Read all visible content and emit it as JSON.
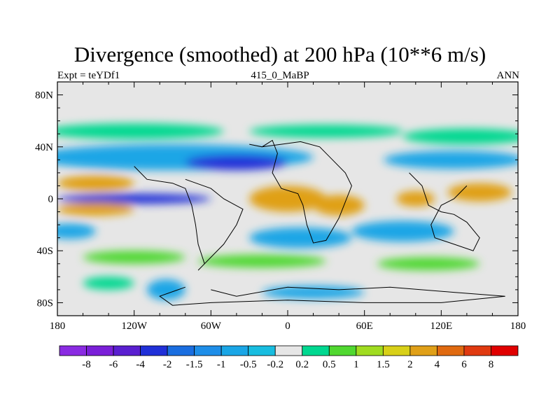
{
  "chart_data": {
    "type": "heatmap",
    "title": "Divergence (smoothed) at 200 hPa (10**6 m/s)",
    "subtitle_left": "Expt = teYDf1",
    "subtitle_center": "415_0_MaBP",
    "subtitle_right": "ANN",
    "x_ticks": [
      "180",
      "120W",
      "60W",
      "0",
      "60E",
      "120E",
      "180"
    ],
    "x_tick_values": [
      -180,
      -120,
      -60,
      0,
      60,
      120,
      180
    ],
    "y_ticks": [
      "80N",
      "40N",
      "0",
      "40S",
      "80S"
    ],
    "y_tick_values": [
      80,
      40,
      0,
      -40,
      -80
    ],
    "xlim": [
      -180,
      180
    ],
    "ylim": [
      -90,
      90
    ],
    "colorbar_labels": [
      "-8",
      "-6",
      "-4",
      "-2",
      "-1.5",
      "-1",
      "-0.5",
      "-0.2",
      "0.2",
      "0.5",
      "1",
      "1.5",
      "2",
      "4",
      "6",
      "8"
    ],
    "colorbar_colors": [
      "#8a2be2",
      "#7a1fd8",
      "#5a1fd0",
      "#2030d8",
      "#1a6ee0",
      "#1e8ee8",
      "#1aa6e6",
      "#18bde0",
      "#e6e6e6",
      "#00d890",
      "#50d830",
      "#a0dc20",
      "#d8d018",
      "#e0a018",
      "#e06a10",
      "#e03a10",
      "#e00000"
    ],
    "background_color": "#e6e6e6",
    "field_blobs": [
      {
        "lon": -120,
        "lat": 52,
        "rx": 70,
        "ry": 6,
        "level": 9
      },
      {
        "lon": 30,
        "lat": 52,
        "rx": 60,
        "ry": 5,
        "level": 9
      },
      {
        "lon": 140,
        "lat": 48,
        "rx": 50,
        "ry": 6,
        "level": 9
      },
      {
        "lon": -90,
        "lat": 32,
        "rx": 110,
        "ry": 10,
        "level": 6
      },
      {
        "lon": -40,
        "lat": 28,
        "rx": 40,
        "ry": 6,
        "level": 3
      },
      {
        "lon": 130,
        "lat": 30,
        "rx": 55,
        "ry": 7,
        "level": 6
      },
      {
        "lon": -150,
        "lat": 12,
        "rx": 30,
        "ry": 6,
        "level": 13
      },
      {
        "lon": -120,
        "lat": 0,
        "rx": 60,
        "ry": 4,
        "level": 3
      },
      {
        "lon": -150,
        "lat": -8,
        "rx": 30,
        "ry": 5,
        "level": 13
      },
      {
        "lon": -170,
        "lat": -25,
        "rx": 20,
        "ry": 6,
        "level": 6
      },
      {
        "lon": 0,
        "lat": 0,
        "rx": 30,
        "ry": 10,
        "level": 13
      },
      {
        "lon": 40,
        "lat": -5,
        "rx": 20,
        "ry": 8,
        "level": 13
      },
      {
        "lon": 100,
        "lat": 0,
        "rx": 15,
        "ry": 6,
        "level": 13
      },
      {
        "lon": 150,
        "lat": 5,
        "rx": 25,
        "ry": 7,
        "level": 13
      },
      {
        "lon": 10,
        "lat": -30,
        "rx": 40,
        "ry": 8,
        "level": 6
      },
      {
        "lon": 90,
        "lat": -25,
        "rx": 40,
        "ry": 8,
        "level": 6
      },
      {
        "lon": -120,
        "lat": -45,
        "rx": 40,
        "ry": 5,
        "level": 10
      },
      {
        "lon": -20,
        "lat": -48,
        "rx": 50,
        "ry": 5,
        "level": 10
      },
      {
        "lon": 110,
        "lat": -50,
        "rx": 40,
        "ry": 5,
        "level": 10
      },
      {
        "lon": -95,
        "lat": -70,
        "rx": 15,
        "ry": 8,
        "level": 6
      },
      {
        "lon": 20,
        "lat": -72,
        "rx": 40,
        "ry": 5,
        "level": 6
      },
      {
        "lon": -140,
        "lat": -65,
        "rx": 20,
        "ry": 5,
        "level": 9
      }
    ],
    "coastlines": [
      [
        [
          -30,
          42
        ],
        [
          -20,
          40
        ],
        [
          -12,
          45
        ],
        [
          -8,
          35
        ],
        [
          -12,
          20
        ],
        [
          -5,
          8
        ],
        [
          8,
          4
        ],
        [
          12,
          -5
        ],
        [
          15,
          -20
        ],
        [
          20,
          -34
        ],
        [
          30,
          -32
        ],
        [
          40,
          -15
        ],
        [
          50,
          10
        ],
        [
          45,
          20
        ],
        [
          35,
          30
        ],
        [
          25,
          40
        ],
        [
          10,
          44
        ],
        [
          -5,
          42
        ],
        [
          -20,
          40
        ]
      ],
      [
        [
          -120,
          25
        ],
        [
          -110,
          15
        ],
        [
          -90,
          12
        ],
        [
          -80,
          8
        ],
        [
          -75,
          -5
        ],
        [
          -72,
          -20
        ],
        [
          -70,
          -35
        ],
        [
          -65,
          -50
        ],
        [
          -70,
          -55
        ],
        [
          -60,
          -45
        ],
        [
          -50,
          -35
        ],
        [
          -40,
          -20
        ],
        [
          -35,
          -8
        ],
        [
          -50,
          0
        ],
        [
          -60,
          8
        ],
        [
          -80,
          15
        ]
      ],
      [
        [
          95,
          20
        ],
        [
          105,
          10
        ],
        [
          110,
          -5
        ],
        [
          120,
          -10
        ],
        [
          130,
          -12
        ],
        [
          140,
          -18
        ],
        [
          150,
          -30
        ],
        [
          145,
          -40
        ],
        [
          130,
          -35
        ],
        [
          115,
          -30
        ],
        [
          112,
          -20
        ],
        [
          120,
          -5
        ],
        [
          130,
          0
        ],
        [
          140,
          10
        ]
      ],
      [
        [
          -60,
          -70
        ],
        [
          -40,
          -75
        ],
        [
          0,
          -68
        ],
        [
          40,
          -70
        ],
        [
          80,
          -68
        ],
        [
          130,
          -72
        ],
        [
          170,
          -75
        ],
        [
          120,
          -80
        ],
        [
          60,
          -80
        ],
        [
          0,
          -78
        ],
        [
          -60,
          -80
        ],
        [
          -90,
          -82
        ],
        [
          -100,
          -75
        ],
        [
          -80,
          -68
        ]
      ]
    ]
  }
}
